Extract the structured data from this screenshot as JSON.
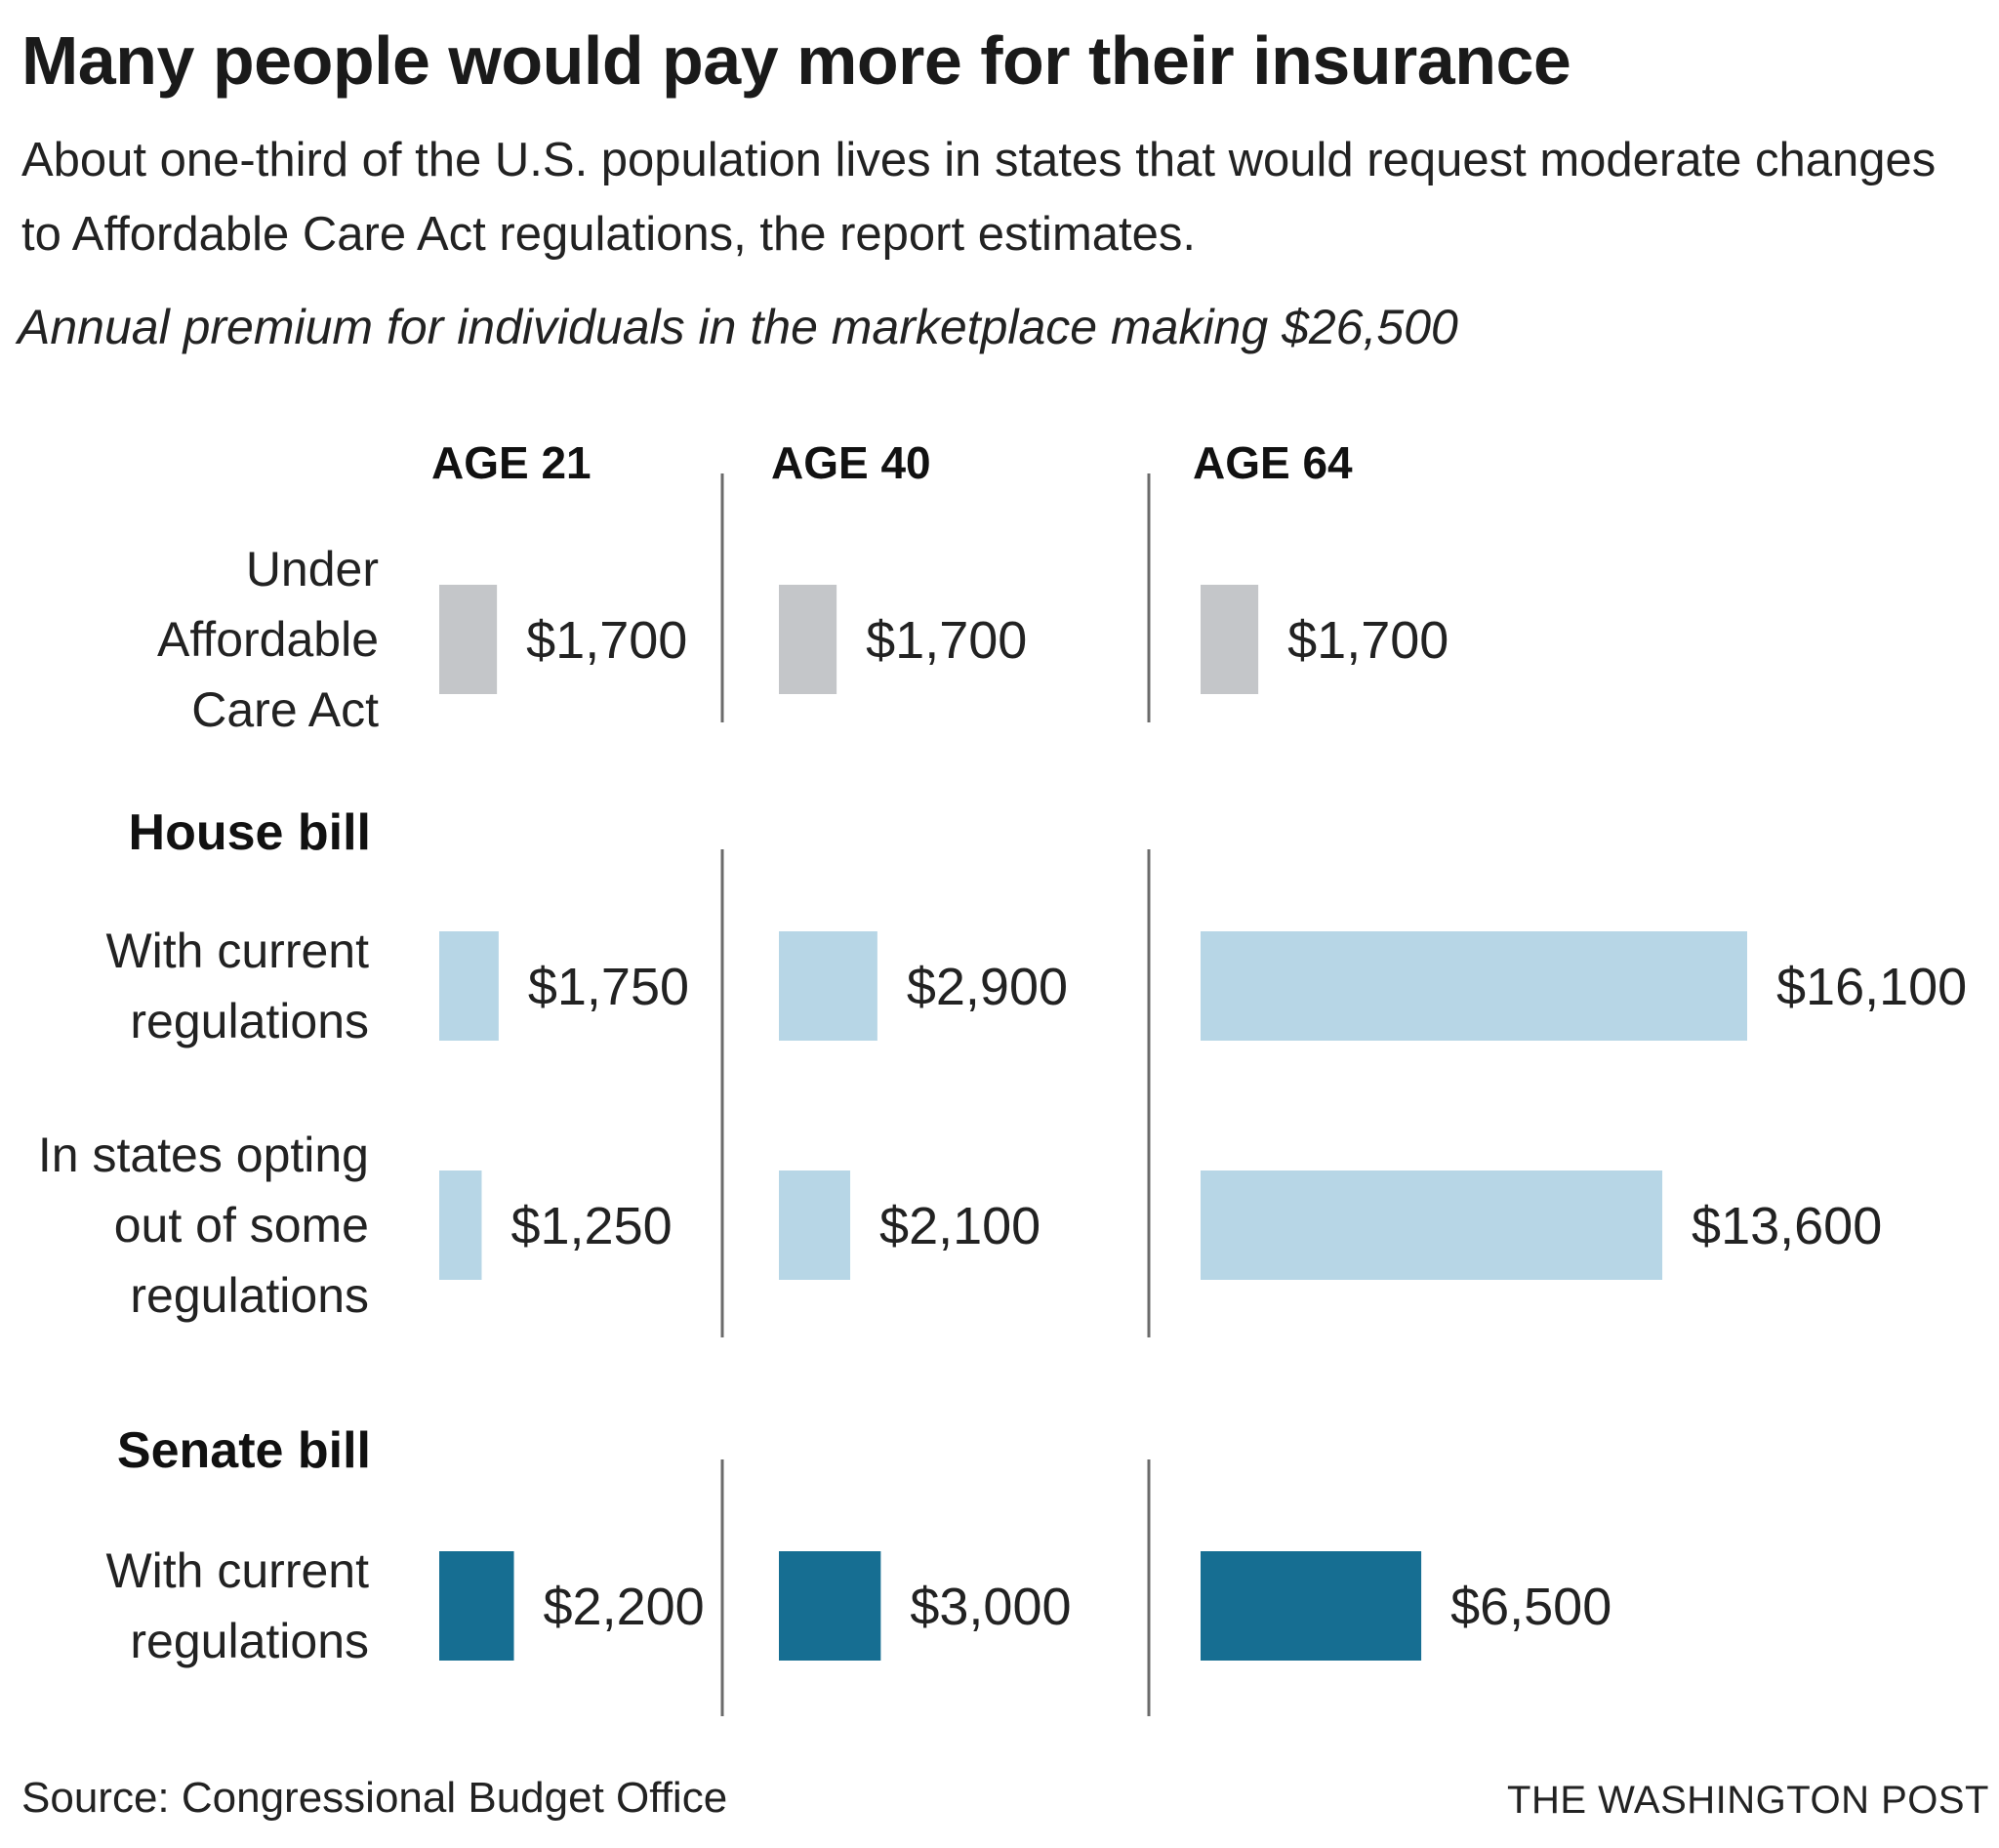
{
  "title": "Many people would pay more for their insurance",
  "subtitle": "About one-third of the U.S. population lives in states that would request moderate changes to Affordable Care Act regulations, the report estimates.",
  "unit_note": "Annual premium for individuals in the marketplace making $26,500",
  "source": "Source: Congressional Budget Office",
  "credit": "THE WASHINGTON POST",
  "colors": {
    "aca": "#c4c6c9",
    "house": "#b7d6e6",
    "senate": "#166e92",
    "divider": "#6b6b6b"
  },
  "chart_data": {
    "type": "bar",
    "orientation": "horizontal",
    "layout": "small-multiples",
    "panels": [
      "AGE 21",
      "AGE 40",
      "AGE 64"
    ],
    "groups": [
      {
        "label": "",
        "rows": [
          {
            "label": [
              "Under",
              "Affordable",
              "Care Act"
            ],
            "color": "aca",
            "values": [
              1700,
              1700,
              1700
            ],
            "value_labels": [
              "$1,700",
              "$1,700",
              "$1,700"
            ]
          }
        ]
      },
      {
        "label": "House bill",
        "rows": [
          {
            "label": [
              "With current",
              "regulations"
            ],
            "color": "house",
            "values": [
              1750,
              2900,
              16100
            ],
            "value_labels": [
              "$1,750",
              "$2,900",
              "$16,100"
            ]
          },
          {
            "label": [
              "In states opting",
              "out of some",
              "regulations"
            ],
            "color": "house",
            "values": [
              1250,
              2100,
              13600
            ],
            "value_labels": [
              "$1,250",
              "$2,100",
              "$13,600"
            ]
          }
        ]
      },
      {
        "label": "Senate bill",
        "rows": [
          {
            "label": [
              "With current",
              "regulations"
            ],
            "color": "senate",
            "values": [
              2200,
              3000,
              6500
            ],
            "value_labels": [
              "$2,200",
              "$3,000",
              "$6,500"
            ]
          }
        ]
      }
    ],
    "xlim": [
      0,
      16100
    ],
    "grid": false,
    "legend": "none"
  }
}
